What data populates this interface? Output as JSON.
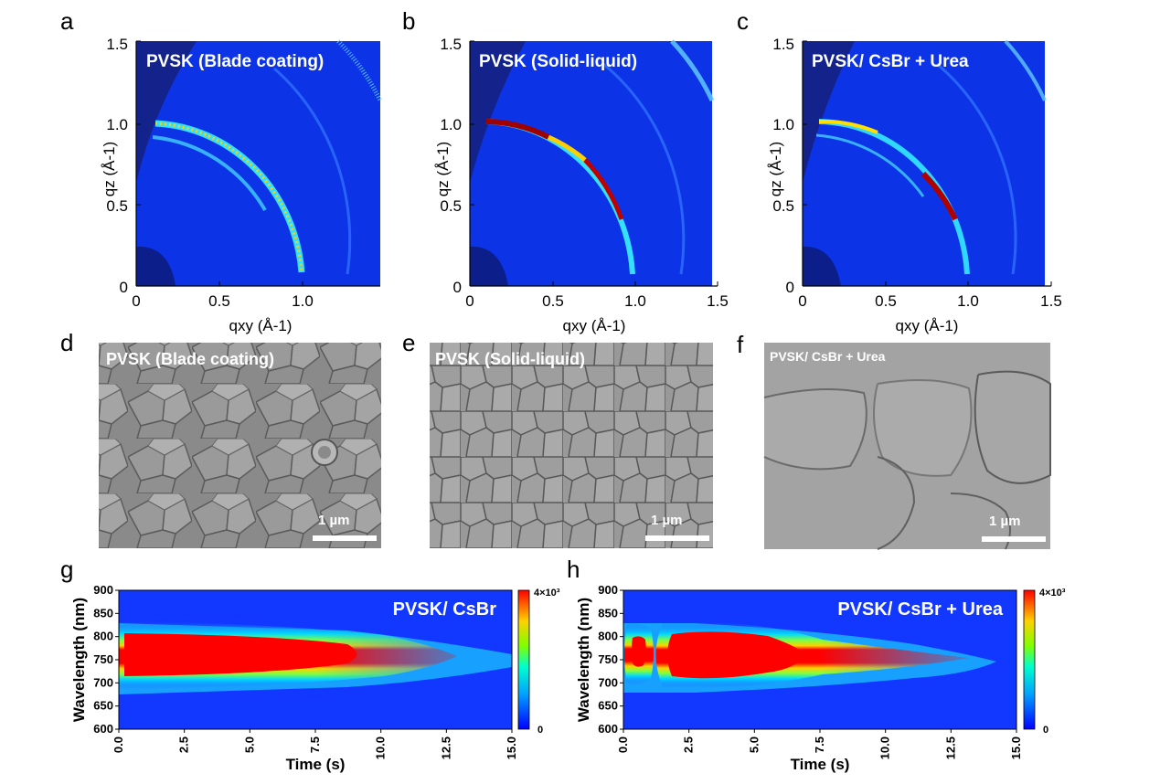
{
  "panel_letters": [
    "a",
    "b",
    "c",
    "d",
    "e",
    "f",
    "g",
    "h"
  ],
  "giwaxs": {
    "titles": [
      "PVSK (Blade coating)",
      "PVSK (Solid-liquid)",
      "PVSK/ CsBr + Urea"
    ],
    "x_ticks_a": [
      "0",
      "0.5",
      "1.0"
    ],
    "x_ticks_bc": [
      "0",
      "0.5",
      "1.0",
      "1.5"
    ],
    "y_ticks": [
      "0",
      "0.5",
      "1.0",
      "1.5"
    ],
    "xlabel": "qxy (Å-1)",
    "ylabel": "qz (Å-1)"
  },
  "sem": {
    "titles": [
      "PVSK (Blade coating)",
      "PVSK (Solid-liquid)",
      "PVSK/ CsBr + Urea"
    ],
    "scale_bar": "1 µm"
  },
  "pl": {
    "titles": [
      "PVSK/ CsBr",
      "PVSK/ CsBr + Urea"
    ],
    "x_ticks": [
      "0.0",
      "2.5",
      "5.0",
      "7.5",
      "10.0",
      "12.5",
      "15.0"
    ],
    "y_ticks": [
      "600",
      "650",
      "700",
      "750",
      "800",
      "850",
      "900"
    ],
    "xlabel": "Time (s)",
    "ylabel": "Wavelength (nm)",
    "colorbar_max": "4×10³",
    "colorbar_min": "0",
    "colors": {
      "low": "#1030ff",
      "mid": "#00ffff",
      "high": "#ff0000"
    }
  },
  "chart_data": [
    {
      "type": "heatmap",
      "panel": "g",
      "title": "PVSK/ CsBr",
      "xlabel": "Time (s)",
      "ylabel": "Wavelength (nm)",
      "xlim": [
        0,
        15
      ],
      "ylim": [
        600,
        900
      ],
      "colorbar": [
        0,
        4000
      ],
      "peak_wavelength_nm": 770,
      "high_intensity_until_s": 7.5,
      "emission_end_s": 12.5
    },
    {
      "type": "heatmap",
      "panel": "h",
      "title": "PVSK/ CsBr + Urea",
      "xlabel": "Time (s)",
      "ylabel": "Wavelength (nm)",
      "xlim": [
        0,
        15
      ],
      "ylim": [
        600,
        900
      ],
      "colorbar": [
        0,
        4000
      ],
      "peak_wavelength_nm": 775,
      "first_burst_s": 0.7,
      "high_intensity_start_s": 1.5,
      "high_intensity_until_s": 6.5,
      "emission_end_s": 12.8
    }
  ]
}
